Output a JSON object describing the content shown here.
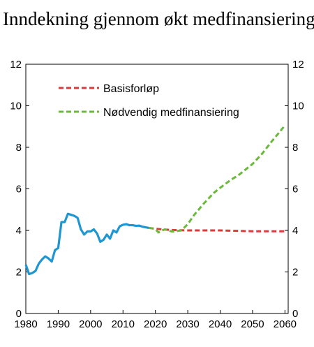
{
  "chart_data": {
    "type": "line",
    "title": "Inndekning gjennom økt medfinansiering",
    "xlabel": "",
    "ylabel": "",
    "xlim": [
      1980,
      2061
    ],
    "ylim": [
      0,
      12
    ],
    "x_ticks": [
      1980,
      1990,
      2000,
      2010,
      2020,
      2030,
      2040,
      2050,
      2060
    ],
    "y_ticks": [
      0,
      2,
      4,
      6,
      8,
      10,
      12
    ],
    "y_ticks_right": [
      0,
      2,
      4,
      6,
      8,
      10,
      12
    ],
    "grid": false,
    "legend_position": "top-left",
    "series": [
      {
        "name": "",
        "color": "#1e96d2",
        "style": "solid",
        "points": [
          [
            1980,
            2.35
          ],
          [
            1981,
            1.9
          ],
          [
            1982,
            1.95
          ],
          [
            1983,
            2.05
          ],
          [
            1984,
            2.4
          ],
          [
            1985,
            2.6
          ],
          [
            1986,
            2.75
          ],
          [
            1987,
            2.65
          ],
          [
            1988,
            2.5
          ],
          [
            1989,
            3.05
          ],
          [
            1990,
            3.15
          ],
          [
            1991,
            4.4
          ],
          [
            1992,
            4.4
          ],
          [
            1993,
            4.8
          ],
          [
            1994,
            4.75
          ],
          [
            1995,
            4.7
          ],
          [
            1996,
            4.6
          ],
          [
            1997,
            4.05
          ],
          [
            1998,
            3.8
          ],
          [
            1999,
            3.95
          ],
          [
            2000,
            3.95
          ],
          [
            2001,
            4.05
          ],
          [
            2002,
            3.85
          ],
          [
            2003,
            3.45
          ],
          [
            2004,
            3.55
          ],
          [
            2005,
            3.8
          ],
          [
            2006,
            3.6
          ],
          [
            2007,
            4.0
          ],
          [
            2008,
            3.9
          ],
          [
            2009,
            4.2
          ],
          [
            2010,
            4.27
          ],
          [
            2011,
            4.3
          ],
          [
            2012,
            4.25
          ],
          [
            2013,
            4.25
          ],
          [
            2014,
            4.22
          ],
          [
            2015,
            4.23
          ],
          [
            2016,
            4.18
          ],
          [
            2017,
            4.15
          ],
          [
            2018,
            4.12
          ]
        ]
      },
      {
        "name": "Basisforløp",
        "color": "#d93a3a",
        "style": "dashed",
        "points": [
          [
            2018,
            4.12
          ],
          [
            2020,
            4.08
          ],
          [
            2022,
            4.05
          ],
          [
            2025,
            4.02
          ],
          [
            2030,
            4.0
          ],
          [
            2035,
            4.0
          ],
          [
            2040,
            4.0
          ],
          [
            2045,
            3.98
          ],
          [
            2050,
            3.96
          ],
          [
            2055,
            3.96
          ],
          [
            2060,
            3.96
          ]
        ]
      },
      {
        "name": "Nødvendig medfinansiering",
        "color": "#6ab83c",
        "style": "dashed",
        "points": [
          [
            2018,
            4.12
          ],
          [
            2019,
            4.1
          ],
          [
            2020,
            4.05
          ],
          [
            2021,
            3.9
          ],
          [
            2022,
            4.0
          ],
          [
            2023,
            4.05
          ],
          [
            2024,
            4.0
          ],
          [
            2025,
            3.95
          ],
          [
            2026,
            3.95
          ],
          [
            2027,
            3.98
          ],
          [
            2028,
            4.0
          ],
          [
            2030,
            4.3
          ],
          [
            2032,
            4.75
          ],
          [
            2035,
            5.3
          ],
          [
            2038,
            5.8
          ],
          [
            2040,
            6.05
          ],
          [
            2043,
            6.4
          ],
          [
            2046,
            6.7
          ],
          [
            2050,
            7.2
          ],
          [
            2053,
            7.7
          ],
          [
            2056,
            8.3
          ],
          [
            2060,
            9.05
          ]
        ]
      }
    ]
  }
}
